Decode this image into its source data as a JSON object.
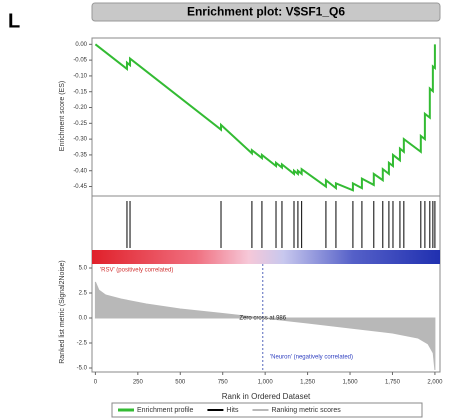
{
  "panel_label": "L",
  "chart_data": [
    {
      "type": "line",
      "title": "Enrichment plot: V$SF1_Q6",
      "ylabel": "Enrichment score (ES)",
      "series": [
        {
          "name": "Enrichment profile",
          "color": "#33bb33",
          "x": [
            0,
            186,
            186,
            204,
            204,
            740,
            740,
            922,
            922,
            981,
            981,
            1064,
            1064,
            1099,
            1099,
            1170,
            1170,
            1193,
            1193,
            1215,
            1215,
            1358,
            1358,
            1417,
            1417,
            1517,
            1517,
            1570,
            1570,
            1640,
            1640,
            1693,
            1693,
            1729,
            1729,
            1753,
            1753,
            1794,
            1794,
            1817,
            1817,
            1917,
            1917,
            1941,
            1941,
            1970,
            1970,
            1988,
            1988,
            2000,
            2000
          ],
          "values": [
            0,
            -0.078,
            -0.058,
            -0.066,
            -0.045,
            -0.27,
            -0.255,
            -0.345,
            -0.335,
            -0.36,
            -0.35,
            -0.385,
            -0.375,
            -0.39,
            -0.38,
            -0.41,
            -0.4,
            -0.41,
            -0.4,
            -0.41,
            -0.395,
            -0.45,
            -0.43,
            -0.455,
            -0.44,
            -0.462,
            -0.44,
            -0.455,
            -0.425,
            -0.445,
            -0.41,
            -0.43,
            -0.395,
            -0.41,
            -0.375,
            -0.385,
            -0.35,
            -0.367,
            -0.33,
            -0.34,
            -0.3,
            -0.34,
            -0.29,
            -0.3,
            -0.22,
            -0.232,
            -0.14,
            -0.148,
            -0.07,
            -0.075,
            0
          ]
        }
      ],
      "xlim": [
        -20,
        2030
      ],
      "ylim": [
        -0.48,
        0.02
      ],
      "yticks": [
        {
          "value": 0,
          "label": "0.00"
        },
        {
          "value": -0.05,
          "label": "-0.05"
        },
        {
          "value": -0.1,
          "label": "-0.10"
        },
        {
          "value": -0.15,
          "label": "-0.15"
        },
        {
          "value": -0.2,
          "label": "-0.20"
        },
        {
          "value": -0.25,
          "label": "-0.25"
        },
        {
          "value": -0.3,
          "label": "-0.30"
        },
        {
          "value": -0.35,
          "label": "-0.35"
        },
        {
          "value": -0.4,
          "label": "-0.40"
        },
        {
          "value": -0.45,
          "label": "-0.45"
        }
      ]
    },
    {
      "type": "hits",
      "xlim": [
        -20,
        2030
      ],
      "series": [
        {
          "name": "Hits",
          "color": "#000000",
          "x": [
            186,
            204,
            740,
            922,
            981,
            1064,
            1099,
            1170,
            1193,
            1215,
            1358,
            1417,
            1517,
            1570,
            1640,
            1693,
            1729,
            1753,
            1794,
            1817,
            1917,
            1941,
            1970,
            1988,
            2000
          ]
        }
      ]
    },
    {
      "type": "area",
      "xlabel": "Rank in Ordered Dataset",
      "ylabel": "Ranked list metric (Signal2Noise)",
      "series": [
        {
          "name": "Ranking metric scores",
          "color": "#b8b8b8",
          "x": [
            0,
            20,
            60,
            150,
            300,
            500,
            750,
            986,
            1250,
            1500,
            1750,
            1900,
            1960,
            1990,
            2000
          ],
          "values": [
            3.6,
            2.8,
            2.3,
            1.9,
            1.4,
            0.9,
            0.45,
            0,
            -0.5,
            -1.0,
            -1.5,
            -2.0,
            -2.6,
            -3.5,
            -5.2
          ]
        }
      ],
      "xlim": [
        -20,
        2030
      ],
      "ylim": [
        -5.4,
        5.4
      ],
      "xticks": [
        0,
        250,
        500,
        750,
        {
          "value": 1000,
          "label": "1,000"
        },
        {
          "value": 1250,
          "label": "1,250"
        },
        {
          "value": 1500,
          "label": "1,500"
        },
        {
          "value": 1750,
          "label": "1,750"
        },
        {
          "value": 2000,
          "label": "2,000"
        }
      ],
      "yticks": [
        {
          "value": 5,
          "label": "5.0"
        },
        {
          "value": 2.5,
          "label": "2.5"
        },
        {
          "value": 0,
          "label": "0.0"
        },
        {
          "value": -2.5,
          "label": "-2.5"
        },
        {
          "value": -5,
          "label": "-5.0"
        }
      ],
      "zero_cross": 986,
      "annotation": "Zero cross at 986",
      "positive_label": "'RSV' (positively correlated)",
      "negative_label": "'Neuron' (negatively correlated)"
    }
  ]
}
